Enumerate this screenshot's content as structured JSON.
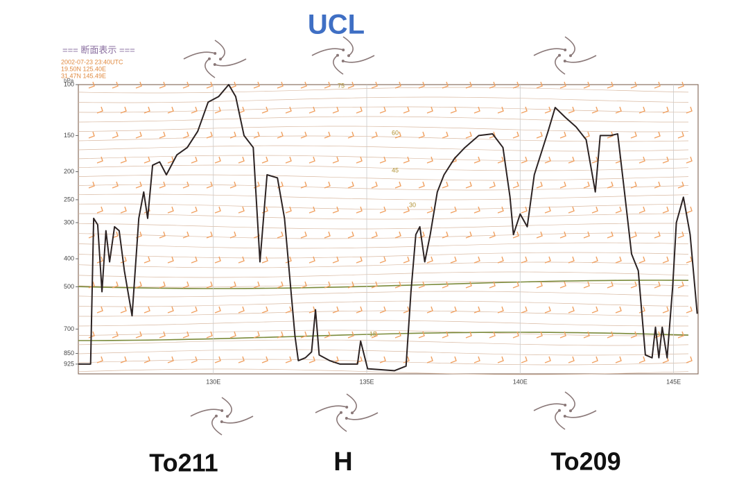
{
  "chart_data": {
    "type": "line",
    "title": "=== 断面表示 ===",
    "info": [
      "2002-07-23 23:40UTC",
      "19.50N 125.40E",
      "31.47N 145.49E"
    ],
    "y_label": "hPa",
    "x": [
      125.6,
      126.0,
      126.1,
      126.23,
      126.37,
      126.5,
      126.62,
      126.78,
      126.93,
      127.1,
      127.35,
      127.57,
      127.73,
      127.86,
      128.02,
      128.25,
      128.47,
      128.81,
      129.15,
      129.49,
      129.83,
      130.17,
      130.5,
      130.73,
      131.0,
      131.3,
      131.52,
      131.75,
      132.09,
      132.32,
      132.66,
      132.77,
      133.0,
      133.2,
      133.33,
      133.45,
      133.79,
      134.13,
      134.7,
      134.8,
      135.03,
      135.9,
      136.28,
      136.44,
      136.6,
      136.73,
      136.89,
      137.07,
      137.3,
      137.52,
      137.86,
      138.2,
      138.65,
      139.1,
      139.44,
      139.67,
      139.78,
      140.0,
      140.23,
      140.46,
      140.91,
      141.14,
      141.48,
      141.82,
      142.15,
      142.45,
      142.61,
      142.95,
      143.18,
      143.4,
      143.63,
      143.85,
      144.08,
      144.3,
      144.41,
      144.52,
      144.63,
      144.79,
      144.97,
      145.09,
      145.32,
      145.54,
      145.77
    ],
    "values": [
      925,
      925,
      290,
      305,
      520,
      320,
      410,
      310,
      320,
      440,
      630,
      290,
      235,
      290,
      190,
      185,
      205,
      175,
      165,
      145,
      115,
      110,
      100,
      110,
      150,
      165,
      410,
      205,
      210,
      290,
      740,
      900,
      880,
      840,
      600,
      860,
      900,
      925,
      925,
      770,
      960,
      975,
      940,
      520,
      330,
      310,
      410,
      330,
      235,
      205,
      180,
      165,
      150,
      148,
      165,
      245,
      330,
      280,
      310,
      205,
      145,
      120,
      130,
      140,
      155,
      235,
      150,
      150,
      148,
      235,
      385,
      440,
      860,
      880,
      690,
      880,
      690,
      880,
      500,
      300,
      245,
      330,
      620
    ],
    "color": "#2b2222",
    "xlim": [
      125.6,
      145.8
    ],
    "ylim": [
      100,
      1000
    ],
    "log_y": true,
    "y_reversed": true,
    "grid": true,
    "xticks": [
      {
        "value": 130,
        "label": "130E"
      },
      {
        "value": 135,
        "label": "135E"
      },
      {
        "value": 140,
        "label": "140E"
      },
      {
        "value": 145,
        "label": "145E"
      }
    ],
    "yticks": [
      100,
      150,
      200,
      250,
      300,
      400,
      500,
      700,
      850,
      925
    ],
    "contour_labels": [
      75,
      60,
      45,
      30,
      15
    ]
  },
  "annotations": [
    "UCL",
    "To211",
    "H",
    "To209"
  ]
}
